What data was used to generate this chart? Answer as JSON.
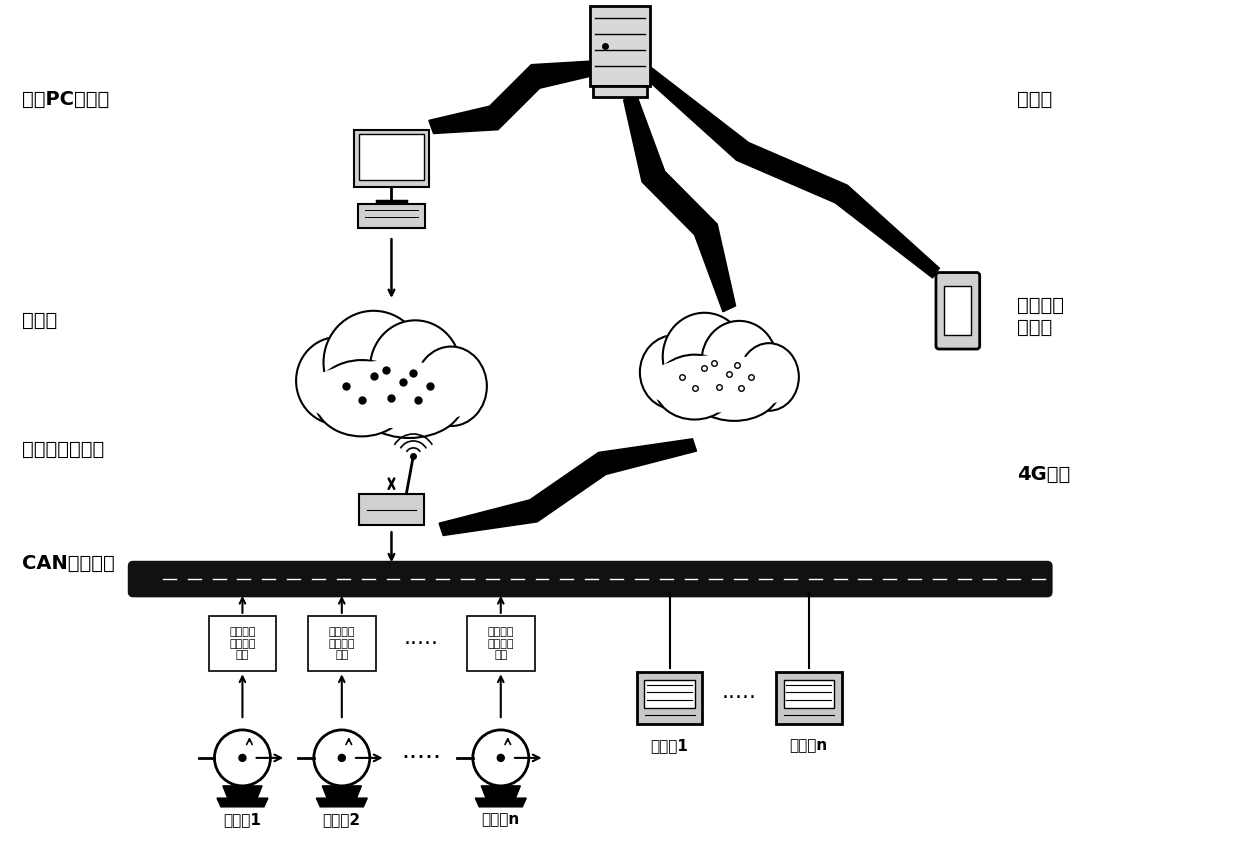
{
  "bg_color": "#ffffff",
  "labels": {
    "remote_pc": "远程PC工作站",
    "ethernet": "以太网",
    "dual_channel_gateway": "专用双信道网关",
    "can_bus": "CAN总线网络",
    "server": "服务器",
    "4g_network": "4G网络",
    "remote_phone": "远程手机\n控制端",
    "sensor1": "传感器1",
    "sensorn": "传感器n",
    "pump1": "计量泵1",
    "pump2": "计量泵2",
    "pumpn": "计量泵n",
    "converter1": "计量泵专\n用数字变\n换器",
    "converter2": "计量泵专\n用数字变\n换器",
    "convertern": "计量泵专\n用数字变\n换器",
    "dots": "·····"
  },
  "figsize": [
    12.4,
    8.65
  ],
  "dpi": 100
}
